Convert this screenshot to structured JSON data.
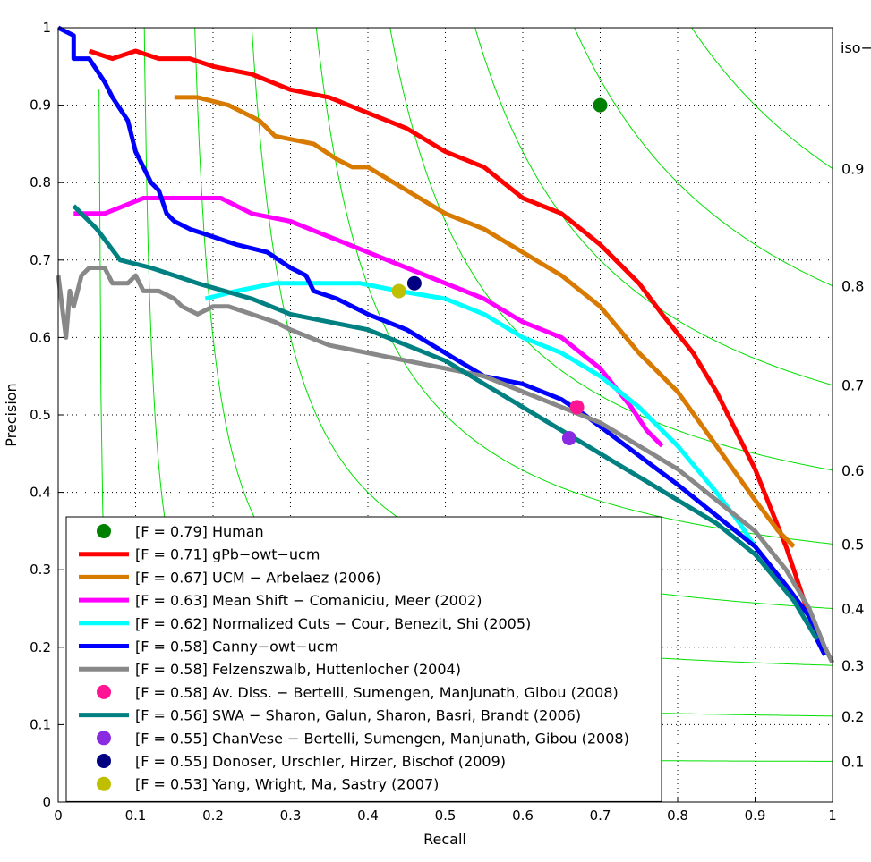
{
  "chart_data": {
    "type": "line",
    "xlabel": "Recall",
    "ylabel": "Precision",
    "xlim": [
      0,
      1
    ],
    "ylim": [
      0,
      1
    ],
    "xticks": [
      "0",
      "0.1",
      "0.2",
      "0.3",
      "0.4",
      "0.5",
      "0.6",
      "0.7",
      "0.8",
      "0.9",
      "1"
    ],
    "yticks": [
      "0",
      "0.1",
      "0.2",
      "0.3",
      "0.4",
      "0.5",
      "0.6",
      "0.7",
      "0.8",
      "0.9",
      "1"
    ],
    "grid": "dotted",
    "iso_label": "iso−F",
    "iso_color": "#00e000",
    "iso_levels": [
      {
        "f": 0.1,
        "label": "0.1"
      },
      {
        "f": 0.2,
        "label": "0.2"
      },
      {
        "f": 0.3,
        "label": "0.3"
      },
      {
        "f": 0.4,
        "label": "0.4"
      },
      {
        "f": 0.5,
        "label": "0.5"
      },
      {
        "f": 0.6,
        "label": "0.6"
      },
      {
        "f": 0.7,
        "label": "0.7"
      },
      {
        "f": 0.8,
        "label": "0.8"
      },
      {
        "f": 0.9,
        "label": "0.9"
      }
    ],
    "legend_position": "bottom-left",
    "series": [
      {
        "name": "[F = 0.79] Human",
        "kind": "point",
        "color": "#008000",
        "points": [
          [
            0.7,
            0.9
          ]
        ]
      },
      {
        "name": "[F = 0.71] gPb−owt−ucm",
        "kind": "line",
        "color": "#ff0000",
        "points": [
          [
            0.04,
            0.97
          ],
          [
            0.07,
            0.96
          ],
          [
            0.1,
            0.97
          ],
          [
            0.13,
            0.96
          ],
          [
            0.17,
            0.96
          ],
          [
            0.2,
            0.95
          ],
          [
            0.25,
            0.94
          ],
          [
            0.3,
            0.92
          ],
          [
            0.35,
            0.91
          ],
          [
            0.4,
            0.89
          ],
          [
            0.45,
            0.87
          ],
          [
            0.5,
            0.84
          ],
          [
            0.55,
            0.82
          ],
          [
            0.6,
            0.78
          ],
          [
            0.65,
            0.76
          ],
          [
            0.7,
            0.72
          ],
          [
            0.72,
            0.7
          ],
          [
            0.75,
            0.67
          ],
          [
            0.78,
            0.63
          ],
          [
            0.82,
            0.58
          ],
          [
            0.85,
            0.53
          ],
          [
            0.88,
            0.47
          ],
          [
            0.9,
            0.43
          ],
          [
            0.92,
            0.38
          ],
          [
            0.94,
            0.33
          ],
          [
            0.95,
            0.3
          ],
          [
            0.96,
            0.27
          ],
          [
            0.97,
            0.24
          ]
        ]
      },
      {
        "name": "[F = 0.67] UCM − Arbelaez (2006)",
        "kind": "line",
        "color": "#d97a00",
        "points": [
          [
            0.15,
            0.91
          ],
          [
            0.18,
            0.91
          ],
          [
            0.22,
            0.9
          ],
          [
            0.26,
            0.88
          ],
          [
            0.28,
            0.86
          ],
          [
            0.33,
            0.85
          ],
          [
            0.36,
            0.83
          ],
          [
            0.38,
            0.82
          ],
          [
            0.4,
            0.82
          ],
          [
            0.45,
            0.79
          ],
          [
            0.5,
            0.76
          ],
          [
            0.55,
            0.74
          ],
          [
            0.6,
            0.71
          ],
          [
            0.65,
            0.68
          ],
          [
            0.7,
            0.64
          ],
          [
            0.75,
            0.58
          ],
          [
            0.8,
            0.53
          ],
          [
            0.85,
            0.46
          ],
          [
            0.9,
            0.39
          ],
          [
            0.93,
            0.35
          ],
          [
            0.95,
            0.33
          ]
        ]
      },
      {
        "name": "[F = 0.63] Mean Shift − Comaniciu, Meer (2002)",
        "kind": "line",
        "color": "#ff00ff",
        "points": [
          [
            0.02,
            0.76
          ],
          [
            0.06,
            0.76
          ],
          [
            0.11,
            0.78
          ],
          [
            0.16,
            0.78
          ],
          [
            0.21,
            0.78
          ],
          [
            0.25,
            0.76
          ],
          [
            0.3,
            0.75
          ],
          [
            0.35,
            0.73
          ],
          [
            0.4,
            0.71
          ],
          [
            0.45,
            0.69
          ],
          [
            0.5,
            0.67
          ],
          [
            0.55,
            0.65
          ],
          [
            0.6,
            0.62
          ],
          [
            0.65,
            0.6
          ],
          [
            0.7,
            0.56
          ],
          [
            0.74,
            0.51
          ],
          [
            0.76,
            0.48
          ],
          [
            0.78,
            0.46
          ]
        ]
      },
      {
        "name": "[F = 0.62] Normalized Cuts − Cour, Benezit, Shi (2005)",
        "kind": "line",
        "color": "#00ffff",
        "points": [
          [
            0.19,
            0.65
          ],
          [
            0.23,
            0.66
          ],
          [
            0.28,
            0.67
          ],
          [
            0.34,
            0.67
          ],
          [
            0.39,
            0.67
          ],
          [
            0.44,
            0.66
          ],
          [
            0.5,
            0.65
          ],
          [
            0.55,
            0.63
          ],
          [
            0.6,
            0.6
          ],
          [
            0.65,
            0.58
          ],
          [
            0.7,
            0.55
          ],
          [
            0.75,
            0.51
          ],
          [
            0.8,
            0.46
          ],
          [
            0.85,
            0.4
          ],
          [
            0.88,
            0.36
          ],
          [
            0.9,
            0.33
          ]
        ]
      },
      {
        "name": "[F = 0.58] Canny−owt−ucm",
        "kind": "line",
        "color": "#0000ff",
        "points": [
          [
            0.0,
            1.0
          ],
          [
            0.02,
            0.99
          ],
          [
            0.02,
            0.96
          ],
          [
            0.04,
            0.96
          ],
          [
            0.06,
            0.93
          ],
          [
            0.07,
            0.91
          ],
          [
            0.09,
            0.88
          ],
          [
            0.1,
            0.84
          ],
          [
            0.11,
            0.82
          ],
          [
            0.12,
            0.8
          ],
          [
            0.13,
            0.79
          ],
          [
            0.14,
            0.76
          ],
          [
            0.15,
            0.75
          ],
          [
            0.17,
            0.74
          ],
          [
            0.2,
            0.73
          ],
          [
            0.23,
            0.72
          ],
          [
            0.27,
            0.71
          ],
          [
            0.3,
            0.69
          ],
          [
            0.32,
            0.68
          ],
          [
            0.33,
            0.66
          ],
          [
            0.36,
            0.65
          ],
          [
            0.4,
            0.63
          ],
          [
            0.45,
            0.61
          ],
          [
            0.5,
            0.58
          ],
          [
            0.55,
            0.55
          ],
          [
            0.6,
            0.54
          ],
          [
            0.65,
            0.52
          ],
          [
            0.68,
            0.5
          ],
          [
            0.72,
            0.47
          ],
          [
            0.76,
            0.44
          ],
          [
            0.8,
            0.41
          ],
          [
            0.85,
            0.37
          ],
          [
            0.9,
            0.33
          ],
          [
            0.94,
            0.28
          ],
          [
            0.97,
            0.24
          ],
          [
            0.98,
            0.21
          ],
          [
            0.99,
            0.19
          ]
        ]
      },
      {
        "name": "[F = 0.58] Felzenszwalb, Huttenlocher (2004)",
        "kind": "line",
        "color": "#888888",
        "points": [
          [
            0.0,
            0.68
          ],
          [
            0.01,
            0.6
          ],
          [
            0.015,
            0.66
          ],
          [
            0.02,
            0.64
          ],
          [
            0.03,
            0.68
          ],
          [
            0.04,
            0.69
          ],
          [
            0.06,
            0.69
          ],
          [
            0.07,
            0.67
          ],
          [
            0.09,
            0.67
          ],
          [
            0.1,
            0.68
          ],
          [
            0.11,
            0.66
          ],
          [
            0.13,
            0.66
          ],
          [
            0.15,
            0.65
          ],
          [
            0.16,
            0.64
          ],
          [
            0.18,
            0.63
          ],
          [
            0.2,
            0.64
          ],
          [
            0.22,
            0.64
          ],
          [
            0.25,
            0.63
          ],
          [
            0.28,
            0.62
          ],
          [
            0.3,
            0.61
          ],
          [
            0.35,
            0.59
          ],
          [
            0.4,
            0.58
          ],
          [
            0.45,
            0.57
          ],
          [
            0.5,
            0.56
          ],
          [
            0.55,
            0.55
          ],
          [
            0.6,
            0.53
          ],
          [
            0.65,
            0.51
          ],
          [
            0.7,
            0.49
          ],
          [
            0.75,
            0.46
          ],
          [
            0.8,
            0.43
          ],
          [
            0.85,
            0.39
          ],
          [
            0.9,
            0.35
          ],
          [
            0.94,
            0.3
          ],
          [
            0.97,
            0.25
          ],
          [
            0.99,
            0.2
          ],
          [
            1.0,
            0.18
          ]
        ]
      },
      {
        "name": "[F = 0.58] Av. Diss. − Bertelli, Sumengen, Manjunath, Gibou (2008)",
        "kind": "point",
        "color": "#ff1493",
        "points": [
          [
            0.67,
            0.51
          ]
        ]
      },
      {
        "name": "[F = 0.56] SWA − Sharon, Galun, Sharon, Basri, Brandt (2006)",
        "kind": "line",
        "color": "#008080",
        "points": [
          [
            0.02,
            0.77
          ],
          [
            0.05,
            0.74
          ],
          [
            0.08,
            0.7
          ],
          [
            0.12,
            0.69
          ],
          [
            0.18,
            0.67
          ],
          [
            0.25,
            0.65
          ],
          [
            0.3,
            0.63
          ],
          [
            0.35,
            0.62
          ],
          [
            0.4,
            0.61
          ],
          [
            0.45,
            0.59
          ],
          [
            0.5,
            0.57
          ],
          [
            0.55,
            0.54
          ],
          [
            0.6,
            0.51
          ],
          [
            0.65,
            0.48
          ],
          [
            0.7,
            0.45
          ],
          [
            0.75,
            0.42
          ],
          [
            0.8,
            0.39
          ],
          [
            0.85,
            0.36
          ],
          [
            0.9,
            0.32
          ],
          [
            0.95,
            0.26
          ],
          [
            0.98,
            0.21
          ]
        ]
      },
      {
        "name": "[F = 0.55] ChanVese − Bertelli, Sumengen, Manjunath, Gibou (2008)",
        "kind": "point",
        "color": "#8a2be2",
        "points": [
          [
            0.66,
            0.47
          ]
        ]
      },
      {
        "name": "[F = 0.55] Donoser, Urschler, Hirzer, Bischof (2009)",
        "kind": "point",
        "color": "#000080",
        "points": [
          [
            0.46,
            0.67
          ]
        ]
      },
      {
        "name": "[F = 0.53] Yang, Wright, Ma, Sastry (2007)",
        "kind": "point",
        "color": "#bfbf00",
        "points": [
          [
            0.44,
            0.66
          ]
        ]
      }
    ]
  }
}
